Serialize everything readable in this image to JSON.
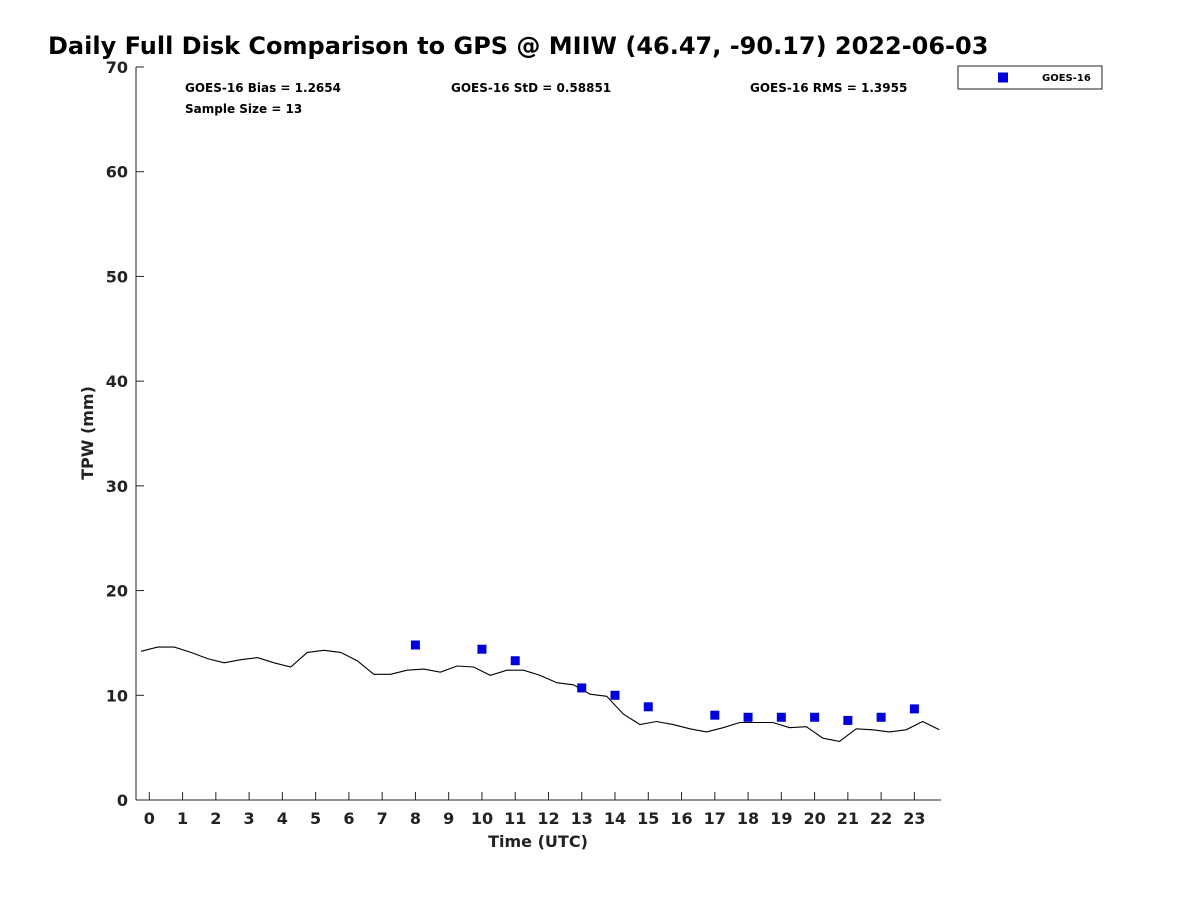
{
  "chart_data": {
    "type": "scatter",
    "title": "Daily Full Disk Comparison to GPS @ MIIW (46.47, -90.17) 2022-06-03",
    "xlabel": "Time (UTC)",
    "ylabel": "TPW (mm)",
    "xlim": [
      -0.4,
      23.8
    ],
    "ylim": [
      0,
      70
    ],
    "x_ticks": [
      0,
      1,
      2,
      3,
      4,
      5,
      6,
      7,
      8,
      9,
      10,
      11,
      12,
      13,
      14,
      15,
      16,
      17,
      18,
      19,
      20,
      21,
      22,
      23
    ],
    "y_ticks": [
      0,
      10,
      20,
      30,
      40,
      50,
      60,
      70
    ],
    "stats": {
      "bias": "GOES-16 Bias = 1.2654",
      "std": "GOES-16 StD = 0.58851",
      "rms": "GOES-16 RMS = 1.3955",
      "sample": "Sample Size = 13"
    },
    "legend": {
      "placement": "top-right, outside plot",
      "entries": [
        "GOES-16"
      ]
    },
    "series": [
      {
        "name": "GOES-16",
        "kind": "scatter",
        "marker": "square",
        "color": "#0000dd",
        "x": [
          8,
          10,
          11,
          13,
          14,
          15,
          17,
          18,
          19,
          20,
          21,
          22,
          23
        ],
        "y": [
          14.8,
          14.4,
          13.3,
          10.7,
          10.0,
          8.9,
          8.1,
          7.9,
          7.9,
          7.9,
          7.6,
          7.9,
          8.7
        ]
      },
      {
        "kind": "line",
        "color": "#000000",
        "x": [
          -0.25,
          0.25,
          0.75,
          1.25,
          1.75,
          2.25,
          2.75,
          3.25,
          3.75,
          4.25,
          4.75,
          5.25,
          5.75,
          6.25,
          6.75,
          7.25,
          7.75,
          8.25,
          8.75,
          9.25,
          9.75,
          10.25,
          10.75,
          11.25,
          11.75,
          12.25,
          12.75,
          13.25,
          13.75,
          14.25,
          14.75,
          15.25,
          15.75,
          16.25,
          16.75,
          17.25,
          17.75,
          18.25,
          18.75,
          19.25,
          19.75,
          20.25,
          20.75,
          21.25,
          21.75,
          22.25,
          22.75,
          23.25,
          23.75
        ],
        "y": [
          14.2,
          14.6,
          14.6,
          14.1,
          13.5,
          13.1,
          13.4,
          13.6,
          13.1,
          12.7,
          14.1,
          14.3,
          14.1,
          13.3,
          12.0,
          12.0,
          12.4,
          12.5,
          12.2,
          12.8,
          12.7,
          11.9,
          12.4,
          12.4,
          11.9,
          11.2,
          11.0,
          10.1,
          9.9,
          8.2,
          7.2,
          7.5,
          7.2,
          6.8,
          6.5,
          6.9,
          7.4,
          7.4,
          7.4,
          6.9,
          7.0,
          5.9,
          5.6,
          6.8,
          6.7,
          6.5,
          6.7,
          7.5,
          6.7
        ]
      }
    ]
  }
}
